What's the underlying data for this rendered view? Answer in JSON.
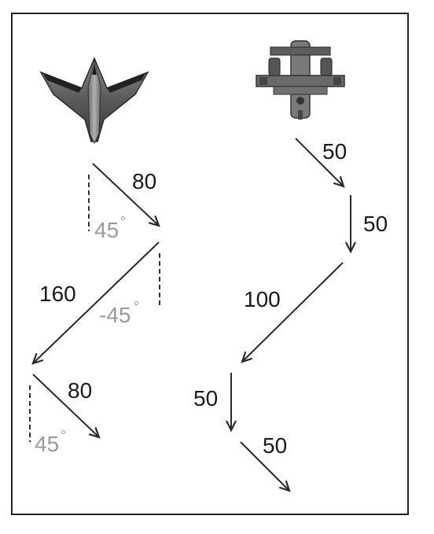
{
  "left_path": {
    "aircraft_icon": "flying-wing-jet-icon",
    "segments": [
      {
        "distance": "80",
        "angle": "45"
      },
      {
        "distance": "160",
        "angle": "-45"
      },
      {
        "distance": "80",
        "angle": "45"
      }
    ]
  },
  "right_path": {
    "aircraft_icon": "attack-jet-icon",
    "segments": [
      {
        "distance": "50"
      },
      {
        "distance": "50"
      },
      {
        "distance": "100"
      },
      {
        "distance": "50"
      },
      {
        "distance": "50"
      }
    ]
  },
  "degree_symbol": "°",
  "colors": {
    "arrow": "#2a2a2a",
    "angle_text": "#9a9a9a",
    "frame": "#222222"
  }
}
